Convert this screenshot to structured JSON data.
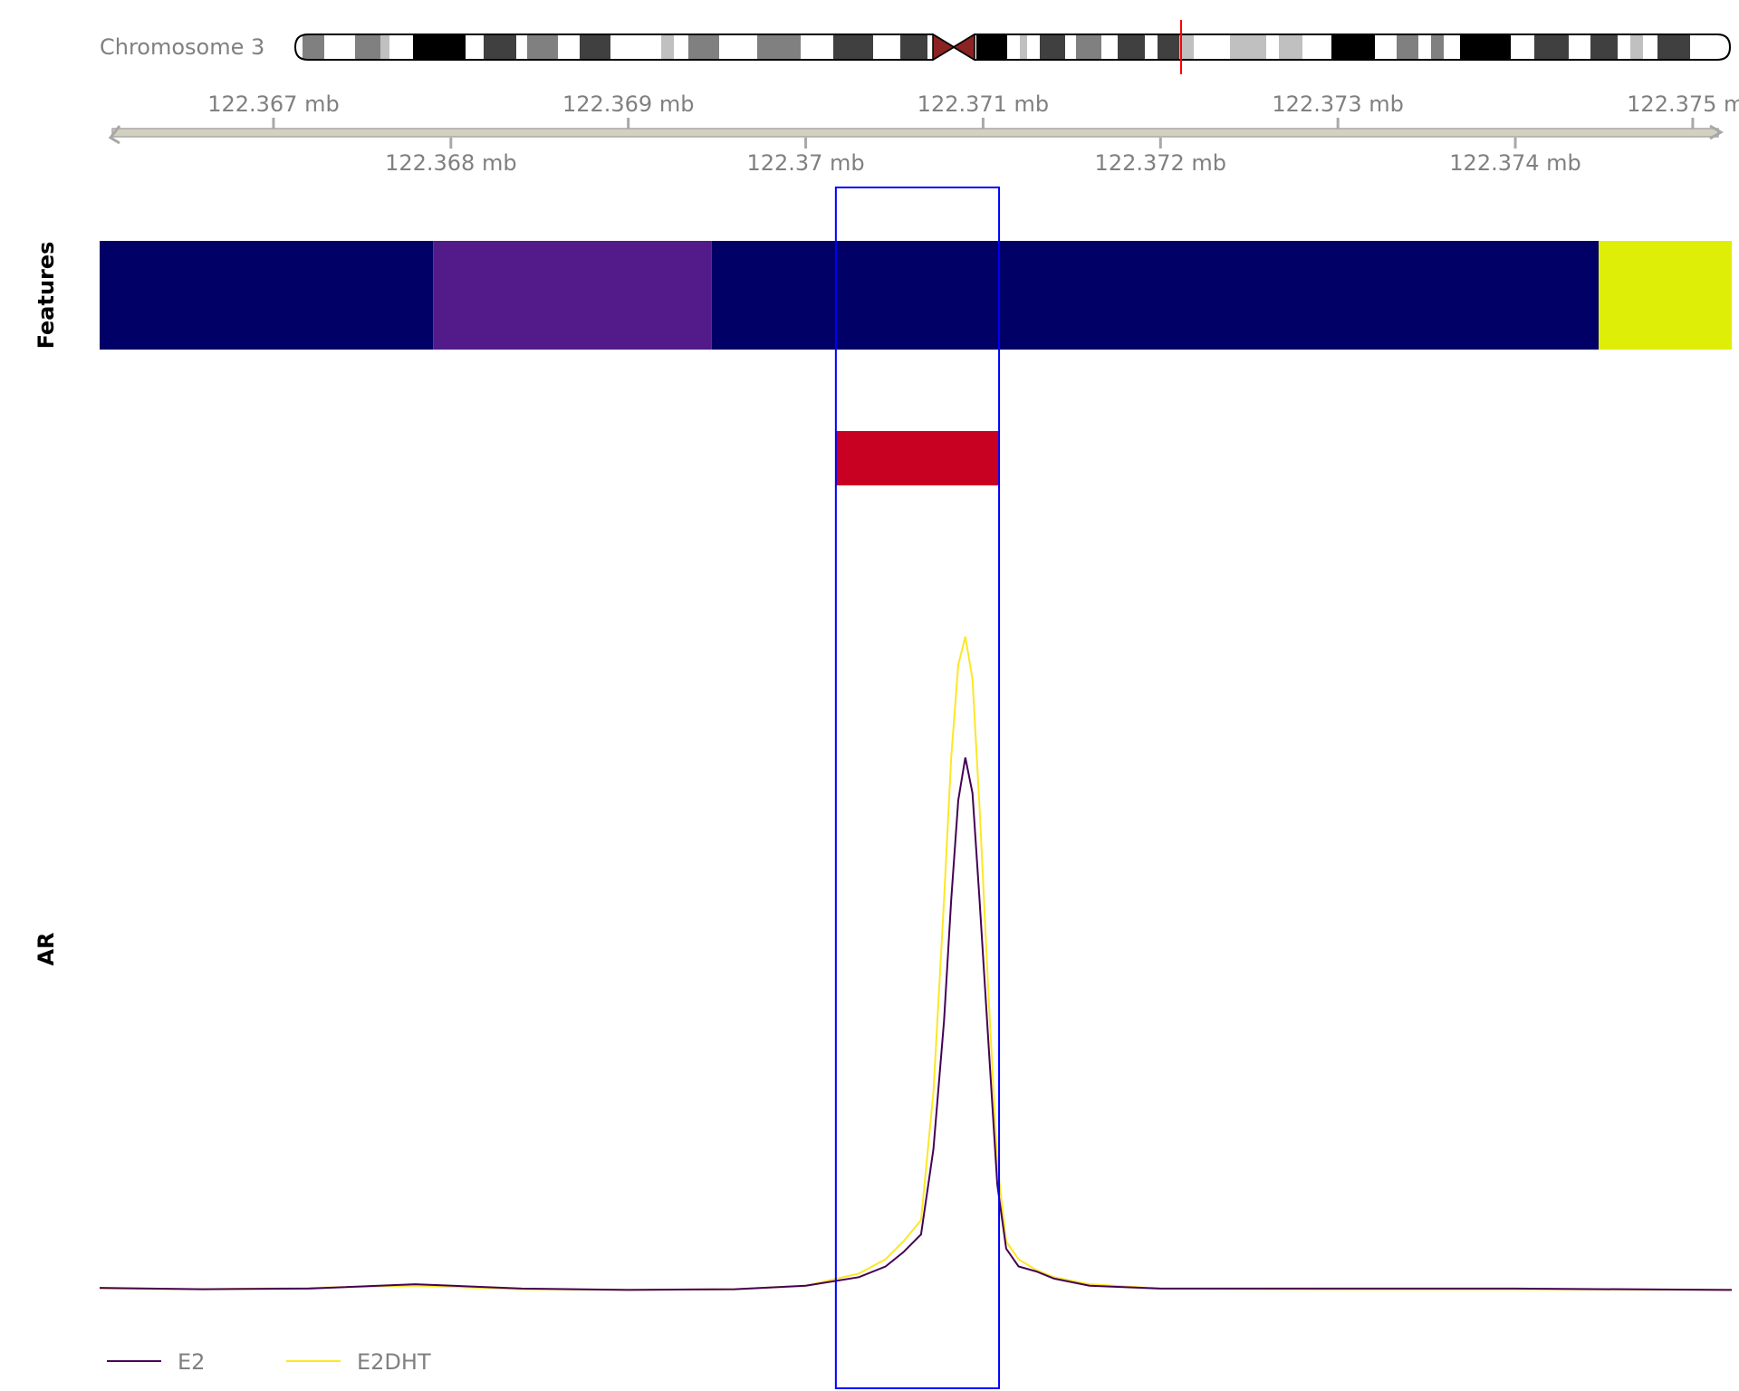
{
  "ideogram": {
    "label": "Chromosome 3",
    "highlight_color": "#ff0000"
  },
  "axis": {
    "top_ticks": [
      {
        "value": 122.367,
        "label": "122.367 mb"
      },
      {
        "value": 122.369,
        "label": "122.369 mb"
      },
      {
        "value": 122.371,
        "label": "122.371 mb"
      },
      {
        "value": 122.373,
        "label": "122.373 mb"
      },
      {
        "value": 122.375,
        "label": "122.375 mb"
      }
    ],
    "bottom_ticks": [
      {
        "value": 122.368,
        "label": "122.368 mb"
      },
      {
        "value": 122.37,
        "label": "122.37 mb"
      },
      {
        "value": 122.372,
        "label": "122.372 mb"
      },
      {
        "value": 122.374,
        "label": "122.374 mb"
      }
    ]
  },
  "tracks": {
    "features_label": "Features",
    "signal_label": "AR"
  },
  "chart_data": {
    "type": "line",
    "x_unit": "mb",
    "xlim": [
      122.36602,
      122.37522
    ],
    "highlight_region": [
      122.37017,
      122.37109
    ],
    "highlight_color": "#0000ff",
    "features": [
      {
        "start": 122.36602,
        "end": 122.3679,
        "color": "#000066"
      },
      {
        "start": 122.3679,
        "end": 122.36947,
        "color": "#531b8a"
      },
      {
        "start": 122.36947,
        "end": 122.37447,
        "color": "#000066"
      },
      {
        "start": 122.37447,
        "end": 122.37522,
        "color": "#dfee07"
      }
    ],
    "peaks": [
      {
        "start": 122.37017,
        "end": 122.37109,
        "color": "#c80022"
      }
    ],
    "ylim": [
      0,
      1.0
    ],
    "series": [
      {
        "name": "E2",
        "color": "#440154",
        "points": [
          [
            122.36602,
            0.005
          ],
          [
            122.3666,
            0.003
          ],
          [
            122.3672,
            0.004
          ],
          [
            122.3678,
            0.01
          ],
          [
            122.3684,
            0.004
          ],
          [
            122.369,
            0.002
          ],
          [
            122.3696,
            0.003
          ],
          [
            122.37,
            0.008
          ],
          [
            122.3703,
            0.02
          ],
          [
            122.37045,
            0.035
          ],
          [
            122.37055,
            0.055
          ],
          [
            122.37065,
            0.08
          ],
          [
            122.37072,
            0.2
          ],
          [
            122.37078,
            0.38
          ],
          [
            122.37082,
            0.55
          ],
          [
            122.37086,
            0.69
          ],
          [
            122.3709,
            0.75
          ],
          [
            122.37094,
            0.7
          ],
          [
            122.37098,
            0.55
          ],
          [
            122.37103,
            0.35
          ],
          [
            122.37108,
            0.15
          ],
          [
            122.37113,
            0.06
          ],
          [
            122.3712,
            0.035
          ],
          [
            122.3713,
            0.028
          ],
          [
            122.3714,
            0.018
          ],
          [
            122.3716,
            0.008
          ],
          [
            122.372,
            0.004
          ],
          [
            122.373,
            0.004
          ],
          [
            122.374,
            0.004
          ],
          [
            122.37522,
            0.002
          ]
        ]
      },
      {
        "name": "E2DHT",
        "color": "#fde725",
        "points": [
          [
            122.36602,
            0.004
          ],
          [
            122.3666,
            0.003
          ],
          [
            122.3672,
            0.005
          ],
          [
            122.3678,
            0.008
          ],
          [
            122.3684,
            0.003
          ],
          [
            122.369,
            0.002
          ],
          [
            122.3696,
            0.003
          ],
          [
            122.37,
            0.008
          ],
          [
            122.3703,
            0.025
          ],
          [
            122.37045,
            0.045
          ],
          [
            122.37055,
            0.07
          ],
          [
            122.37065,
            0.1
          ],
          [
            122.37072,
            0.28
          ],
          [
            122.37078,
            0.55
          ],
          [
            122.37082,
            0.75
          ],
          [
            122.37086,
            0.88
          ],
          [
            122.3709,
            0.92
          ],
          [
            122.37094,
            0.86
          ],
          [
            122.37098,
            0.68
          ],
          [
            122.37103,
            0.42
          ],
          [
            122.37108,
            0.18
          ],
          [
            122.37113,
            0.07
          ],
          [
            122.3712,
            0.045
          ],
          [
            122.3713,
            0.03
          ],
          [
            122.3714,
            0.02
          ],
          [
            122.3716,
            0.01
          ],
          [
            122.372,
            0.004
          ],
          [
            122.373,
            0.003
          ],
          [
            122.374,
            0.003
          ],
          [
            122.37522,
            0.002
          ]
        ]
      }
    ]
  },
  "legend": [
    {
      "label": "E2",
      "color": "#440154"
    },
    {
      "label": "E2DHT",
      "color": "#fde725"
    }
  ]
}
